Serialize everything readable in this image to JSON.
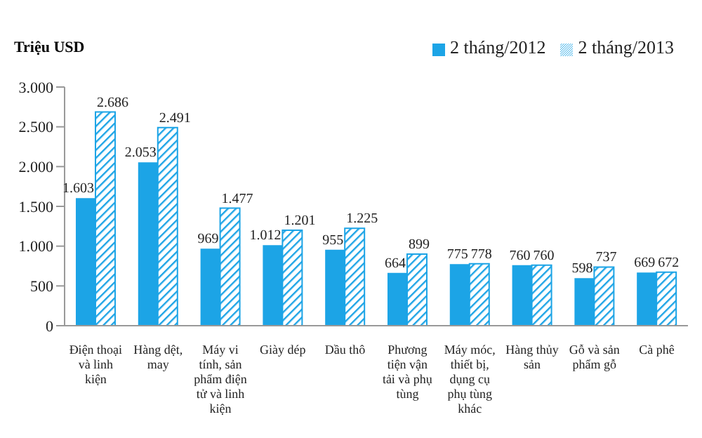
{
  "chart_data": {
    "type": "bar",
    "ylabel": "Triệu USD",
    "categories": [
      "Điện thoại và linh kiện",
      "Hàng dệt, may",
      "Máy vi tính, sản phẩm điện tử và linh kiện",
      "Giày dép",
      "Dầu thô",
      "Phương tiện vận tải và phụ tùng",
      "Máy móc, thiết bị, dụng cụ phụ tùng khác",
      "Hàng thủy sản",
      "Gỗ và sản phẩm gỗ",
      "Cà phê"
    ],
    "series": [
      {
        "name": "2 tháng/2012",
        "color": "#1ca4e6",
        "values": [
          1603,
          2053,
          969,
          1012,
          955,
          664,
          775,
          760,
          598,
          669
        ],
        "value_labels": [
          "1.603",
          "2.053",
          "969",
          "1.012",
          "955",
          "664",
          "775",
          "760",
          "598",
          "669"
        ]
      },
      {
        "name": "2 tháng/2013",
        "color": "#1ca4e6",
        "values": [
          2686,
          2491,
          1477,
          1201,
          1225,
          899,
          778,
          760,
          737,
          672
        ],
        "value_labels": [
          "2.686",
          "2.491",
          "1.477",
          "1.201",
          "1.225",
          "899",
          "778",
          "760",
          "737",
          "672"
        ]
      }
    ],
    "ylim": [
      0,
      3000
    ],
    "yticks": [
      0,
      {
        "value": 500,
        "label": "500"
      },
      {
        "value": 1000,
        "label": "1.000"
      },
      {
        "value": 1500,
        "label": "1.500"
      },
      {
        "value": 2000,
        "label": "2.000"
      },
      {
        "value": 2500,
        "label": "2.500"
      },
      {
        "value": 3000,
        "label": "3.000"
      }
    ],
    "grid": false,
    "legend": "top right"
  }
}
